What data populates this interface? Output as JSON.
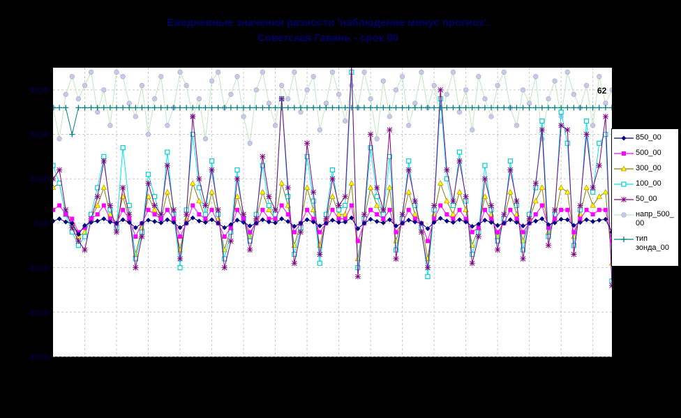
{
  "chart_data": {
    "type": "line",
    "title_lines": [
      "Ежедневные значения разности 'наблюдение минус прогноз'.",
      "Советская Гавань - срок 00"
    ],
    "background_color": "#000000",
    "plot_background_color": "#ffffff",
    "gridline_color": "#c9c9c9",
    "axis_text_color": "#000066",
    "grid": true,
    "legend_position": "right",
    "ylim": [
      -30,
      35
    ],
    "y_axis": {
      "tick_values": [
        30,
        20,
        10,
        0,
        -10,
        -20,
        -30
      ],
      "tick_labels": [
        "30,00",
        "20,00",
        "10,00",
        "0,00",
        "-10,00",
        "-20,00",
        "-30,00"
      ]
    },
    "x_gridline_every": 5,
    "annotations": [
      {
        "text": "62"
      }
    ],
    "series": [
      {
        "name": "850_00",
        "color": "#000080",
        "marker": "diamond",
        "marker_color": "#000080",
        "values": [
          0.5,
          1,
          0.3,
          0,
          -2.5,
          -0.5,
          0.2,
          0.5,
          1,
          0.3,
          0,
          0.8,
          0.2,
          -1,
          0,
          0.7,
          0.4,
          0.1,
          0.8,
          0.2,
          -1,
          0,
          1.2,
          0.5,
          0.2,
          0.8,
          0,
          -1,
          -0.3,
          0.7,
          0.2,
          -0.6,
          0,
          0.8,
          0.3,
          0.1,
          1,
          0.4,
          -0.7,
          0,
          0.8,
          0.3,
          -0.6,
          0,
          0.7,
          0.2,
          0.3,
          1.2,
          -1.2,
          0,
          0.9,
          0.4,
          0.1,
          0.8,
          -0.6,
          0,
          0.7,
          0.3,
          0,
          -1.2,
          0.2,
          1.1,
          0.5,
          0.2,
          0.8,
          0.3,
          -0.7,
          -0.2,
          0.7,
          0.2,
          -0.5,
          0,
          0.8,
          0.2,
          -0.6,
          0,
          0.5,
          1,
          -0.3,
          0.1,
          0.9,
          0.8,
          -0.5,
          0.2,
          0.8,
          0.4,
          0.7,
          0.9,
          -2
        ]
      },
      {
        "name": "500_00",
        "color": "#ff00ff",
        "marker": "square",
        "marker_color": "#ff00ff",
        "values": [
          3,
          4,
          2,
          1,
          -2,
          -1,
          1,
          2,
          4,
          1,
          0,
          3,
          1,
          -3,
          0,
          3,
          2,
          1,
          3,
          1,
          -3,
          0,
          4,
          2,
          1,
          3,
          0,
          -3,
          -1,
          3,
          1,
          -2,
          0,
          3,
          1,
          1,
          4,
          2,
          -2,
          0,
          3,
          1,
          -2,
          0,
          3,
          1,
          1,
          4,
          -4,
          0,
          3,
          2,
          1,
          3,
          -2,
          0,
          3,
          1,
          0,
          -4,
          1,
          4,
          2,
          1,
          3,
          1,
          -2,
          -1,
          3,
          1,
          -2,
          0,
          3,
          1,
          -2,
          0,
          2,
          4,
          -1,
          1,
          3,
          3,
          -2,
          1,
          3,
          2,
          3,
          3,
          -4
        ]
      },
      {
        "name": "300_00",
        "color": "#808000",
        "marker": "triangle",
        "marker_color": "#ffff00",
        "marker_edge": "#c89600",
        "values": [
          8,
          9,
          2,
          0,
          -3,
          -2,
          1,
          4,
          8,
          2,
          0,
          6,
          1,
          -7,
          -1,
          6,
          3,
          1,
          7,
          1,
          -6,
          1,
          9,
          5,
          1,
          7,
          1,
          -6,
          -1,
          6,
          1,
          -3,
          1,
          7,
          3,
          1,
          9,
          4,
          -5,
          0,
          8,
          3,
          -5,
          1,
          6,
          2,
          2,
          9,
          -8,
          1,
          8,
          4,
          1,
          8,
          -4,
          1,
          7,
          2,
          0,
          -8,
          2,
          9,
          5,
          2,
          7,
          3,
          -5,
          -1,
          6,
          2,
          -3,
          1,
          7,
          2,
          -4,
          1,
          5,
          8,
          -2,
          1,
          8,
          7,
          -3,
          2,
          8,
          4,
          6,
          7,
          -9
        ]
      },
      {
        "name": "100_00",
        "color": "#00e5ee",
        "marker": "open-square",
        "marker_color": "#ffffff",
        "marker_edge": "#00cdd6",
        "values": [
          13,
          9,
          2,
          -2,
          -5,
          -3,
          2,
          8,
          15,
          3,
          -1,
          17,
          4,
          -8,
          -2,
          11,
          6,
          1,
          16,
          2,
          -10,
          3,
          20,
          8,
          2,
          14,
          2,
          -8,
          -2,
          12,
          1,
          -4,
          2,
          13,
          4,
          2,
          28,
          6,
          -7,
          -1,
          15,
          5,
          -9,
          2,
          12,
          3,
          4,
          34,
          -10,
          1,
          17,
          6,
          2,
          15,
          -6,
          1,
          14,
          4,
          -1,
          -12,
          3,
          28,
          10,
          4,
          16,
          5,
          -7,
          -2,
          13,
          3,
          -4,
          1,
          14,
          4,
          -6,
          2,
          8,
          23,
          -3,
          2,
          25,
          18,
          -5,
          3,
          23,
          7,
          18,
          20,
          -13
        ]
      },
      {
        "name": "50_00",
        "color": "#800080",
        "marker": "asterisk",
        "marker_color": "#800080",
        "values": [
          10,
          12,
          3,
          -1,
          -4,
          -6,
          1,
          6,
          14,
          4,
          -2,
          8,
          2,
          -10,
          -3,
          9,
          4,
          2,
          13,
          3,
          -8,
          2,
          24,
          10,
          4,
          12,
          3,
          -10,
          -4,
          10,
          2,
          -6,
          1,
          15,
          6,
          3,
          28,
          8,
          -9,
          -2,
          18,
          7,
          -7,
          1,
          10,
          4,
          6,
          35.5,
          -12,
          2,
          20,
          8,
          3,
          21,
          -8,
          2,
          12,
          5,
          -2,
          -10,
          4,
          30,
          12,
          5,
          14,
          6,
          -9,
          -3,
          10,
          4,
          -6,
          2,
          12,
          5,
          -8,
          1,
          9,
          21,
          -5,
          3,
          22,
          21,
          -7,
          4,
          20,
          8,
          13,
          24,
          -14
        ]
      },
      {
        "name": "напр_500_00",
        "color": "#bce8bc",
        "marker": "circle",
        "marker_color": "#c9c9e6",
        "marker_edge": "#b2b2d8",
        "values": [
          26,
          19,
          29,
          33,
          28,
          31,
          34,
          25,
          30,
          22,
          34,
          33,
          27,
          24,
          31,
          20,
          28,
          33,
          22,
          26,
          34,
          31,
          24,
          28,
          19,
          32,
          34,
          26,
          29,
          33,
          24,
          18,
          30,
          34,
          27,
          22,
          31,
          28,
          34,
          25,
          30,
          33,
          21,
          27,
          34,
          29,
          23,
          31,
          26,
          34,
          28,
          19,
          32,
          24,
          30,
          33,
          22,
          27,
          34,
          26,
          31,
          23,
          29,
          34,
          25,
          30,
          21,
          33,
          28,
          24,
          31,
          34,
          26,
          22,
          30,
          27,
          33,
          19,
          28,
          32,
          24,
          34,
          29,
          26,
          31,
          22,
          33,
          27,
          30
        ]
      },
      {
        "name": "тип зонда_00",
        "color": "#008080",
        "marker": "plus",
        "marker_color": "#008080",
        "values": [
          26,
          26,
          26,
          20,
          26,
          26,
          26,
          26,
          26,
          26,
          26,
          26,
          26,
          26,
          26,
          26,
          26,
          26,
          26,
          26,
          26,
          26,
          26,
          26,
          26,
          26,
          26,
          26,
          26,
          26,
          26,
          26,
          26,
          26,
          26,
          26,
          26,
          26,
          26,
          26,
          26,
          26,
          26,
          26,
          26,
          26,
          26,
          26,
          26,
          26,
          26,
          26,
          26,
          26,
          26,
          26,
          26,
          26,
          26,
          26,
          26,
          26,
          26,
          26,
          26,
          26,
          26,
          26,
          26,
          26,
          26,
          26,
          26,
          26,
          26,
          26,
          26,
          26,
          26,
          26,
          26,
          26,
          26,
          26,
          26,
          26,
          26,
          26,
          26
        ]
      }
    ]
  }
}
